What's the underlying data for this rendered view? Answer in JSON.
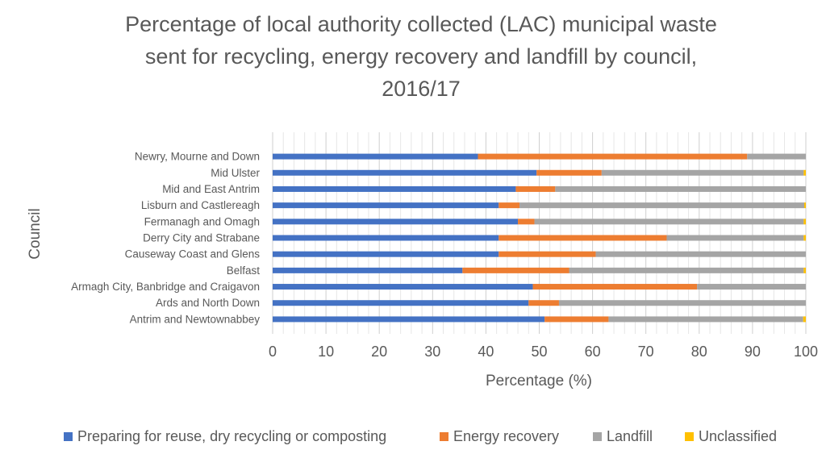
{
  "colors": {
    "reuse": "#4472c4",
    "energy": "#ed7d31",
    "landfill": "#a5a5a5",
    "unclassified": "#ffc000",
    "gridline": "#d9d9d9",
    "axis_text": "#595959"
  },
  "chart_data": {
    "type": "bar",
    "orientation": "horizontal",
    "stacked": true,
    "title_lines": [
      "Percentage of local authority collected (LAC) municipal waste",
      "sent for recycling, energy recovery and landfill by council,",
      "2016/17"
    ],
    "xlabel": "Percentage (%)",
    "ylabel": "Council",
    "xlim": [
      0,
      100
    ],
    "x_ticks": [
      "0",
      "10",
      "20",
      "30",
      "40",
      "50",
      "60",
      "70",
      "80",
      "90",
      "100"
    ],
    "grid": true,
    "legend_position": "bottom",
    "categories": [
      "Newry, Mourne and Down",
      "Mid Ulster",
      "Mid and East Antrim",
      "Lisburn and Castlereagh",
      "Fermanagh and Omagh",
      "Derry City and Strabane",
      "Causeway Coast and Glens",
      "Belfast",
      "Armagh City, Banbridge and Craigavon",
      "Ards and North Down",
      "Antrim and Newtownabbey"
    ],
    "series": [
      {
        "name": "Preparing for reuse, dry recycling or composting",
        "key": "reuse",
        "values": [
          38.5,
          49.5,
          45.6,
          42.4,
          46.0,
          42.4,
          42.4,
          35.6,
          48.8,
          48.0,
          51.0
        ]
      },
      {
        "name": "Energy recovery",
        "key": "energy",
        "values": [
          50.5,
          12.2,
          7.4,
          3.9,
          3.1,
          31.5,
          18.2,
          20.0,
          30.8,
          5.7,
          12.0
        ]
      },
      {
        "name": "Landfill",
        "key": "landfill",
        "values": [
          11.0,
          37.9,
          47.0,
          53.4,
          50.5,
          25.7,
          39.4,
          44.0,
          20.4,
          46.3,
          36.5
        ]
      },
      {
        "name": "Unclassified",
        "key": "unclassified",
        "values": [
          0.0,
          0.4,
          0.0,
          0.3,
          0.4,
          0.4,
          0.0,
          0.4,
          0.0,
          0.0,
          0.5
        ]
      }
    ]
  }
}
